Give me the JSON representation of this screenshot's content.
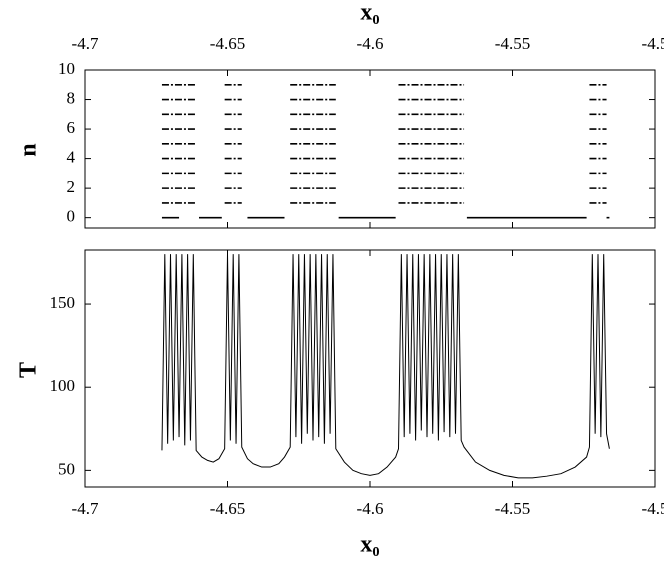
{
  "chart_data": [
    {
      "type": "segments",
      "xlabel": "x₀",
      "ylabel": "n",
      "xlim": [
        -4.7,
        -4.5
      ],
      "xticks": [
        -4.7,
        -4.65,
        -4.6,
        -4.55,
        -4.5
      ],
      "ylim": [
        -0.7,
        10
      ],
      "yticks": [
        0,
        2,
        4,
        6,
        8,
        10
      ],
      "levels": [
        0,
        1,
        2,
        3,
        4,
        5,
        6,
        7,
        8,
        9
      ],
      "bands": [
        [
          -4.673,
          -4.661
        ],
        [
          -4.651,
          -4.645
        ],
        [
          -4.628,
          -4.612
        ],
        [
          -4.59,
          -4.567
        ],
        [
          -4.523,
          -4.517
        ]
      ],
      "zero_segments": [
        [
          -4.673,
          -4.667
        ],
        [
          -4.66,
          -4.652
        ],
        [
          -4.643,
          -4.63
        ],
        [
          -4.611,
          -4.591
        ],
        [
          -4.566,
          -4.524
        ],
        [
          -4.517,
          -4.516
        ]
      ],
      "color": "#000000"
    },
    {
      "type": "line",
      "xlabel": "x₀",
      "ylabel": "T",
      "xlim": [
        -4.7,
        -4.5
      ],
      "xticks": [
        -4.7,
        -4.65,
        -4.6,
        -4.55,
        -4.5
      ],
      "ylim": [
        40,
        182.5
      ],
      "yticks": [
        50,
        100,
        150
      ],
      "x": [
        -4.673,
        -4.672,
        -4.671,
        -4.67,
        -4.669,
        -4.668,
        -4.667,
        -4.666,
        -4.665,
        -4.664,
        -4.663,
        -4.662,
        -4.661,
        -4.659,
        -4.657,
        -4.655,
        -4.653,
        -4.651,
        -4.65,
        -4.649,
        -4.648,
        -4.647,
        -4.646,
        -4.645,
        -4.643,
        -4.641,
        -4.638,
        -4.635,
        -4.632,
        -4.63,
        -4.628,
        -4.627,
        -4.626,
        -4.625,
        -4.624,
        -4.623,
        -4.622,
        -4.621,
        -4.62,
        -4.619,
        -4.618,
        -4.617,
        -4.616,
        -4.615,
        -4.614,
        -4.613,
        -4.612,
        -4.609,
        -4.606,
        -4.603,
        -4.6,
        -4.597,
        -4.594,
        -4.591,
        -4.59,
        -4.589,
        -4.588,
        -4.587,
        -4.586,
        -4.585,
        -4.584,
        -4.583,
        -4.582,
        -4.581,
        -4.58,
        -4.579,
        -4.578,
        -4.577,
        -4.576,
        -4.575,
        -4.574,
        -4.573,
        -4.572,
        -4.571,
        -4.57,
        -4.569,
        -4.568,
        -4.567,
        -4.563,
        -4.558,
        -4.553,
        -4.548,
        -4.543,
        -4.538,
        -4.533,
        -4.528,
        -4.524,
        -4.523,
        -4.522,
        -4.521,
        -4.52,
        -4.519,
        -4.518,
        -4.517,
        -4.516
      ],
      "values": [
        62,
        180,
        66,
        180,
        68,
        180,
        70,
        180,
        65,
        180,
        68,
        180,
        62,
        58,
        56,
        55,
        57,
        63,
        180,
        68,
        180,
        66,
        180,
        64,
        57,
        54,
        52,
        52,
        54,
        58,
        64,
        180,
        70,
        180,
        66,
        180,
        72,
        180,
        68,
        180,
        70,
        180,
        66,
        180,
        72,
        180,
        63,
        55,
        50,
        48,
        47,
        48,
        52,
        58,
        63,
        180,
        70,
        180,
        72,
        180,
        68,
        180,
        74,
        180,
        70,
        180,
        72,
        180,
        68,
        180,
        73,
        180,
        70,
        180,
        72,
        180,
        68,
        64,
        55,
        50,
        47,
        45.5,
        45.5,
        46.5,
        48,
        52,
        58,
        64,
        180,
        72,
        180,
        70,
        180,
        72,
        63
      ],
      "color": "#000000"
    }
  ]
}
